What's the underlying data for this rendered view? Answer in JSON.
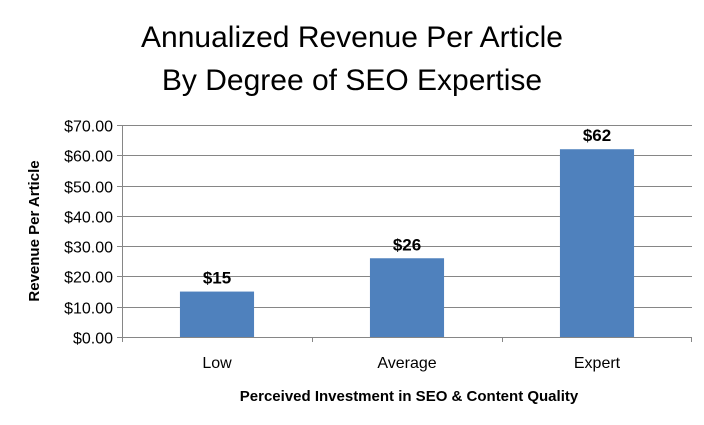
{
  "chart_data": {
    "type": "bar",
    "title": [
      "Annualized Revenue Per Article",
      "By Degree of SEO Expertise"
    ],
    "categories": [
      "Low",
      "Average",
      "Expert"
    ],
    "values": [
      15,
      26,
      62
    ],
    "data_labels": [
      "$15",
      "$26",
      "$62"
    ],
    "xlabel": "Perceived Investment in SEO & Content Quality",
    "ylabel": "Revenue Per Article",
    "ylim": [
      0,
      70
    ],
    "yticks": [
      0,
      10,
      20,
      30,
      40,
      50,
      60,
      70
    ],
    "ytick_labels": [
      "$0.00",
      "$10.00",
      "$20.00",
      "$30.00",
      "$40.00",
      "$50.00",
      "$60.00",
      "$70.00"
    ],
    "grid": true,
    "legend": "none",
    "bar_color": "#4f81bd"
  }
}
